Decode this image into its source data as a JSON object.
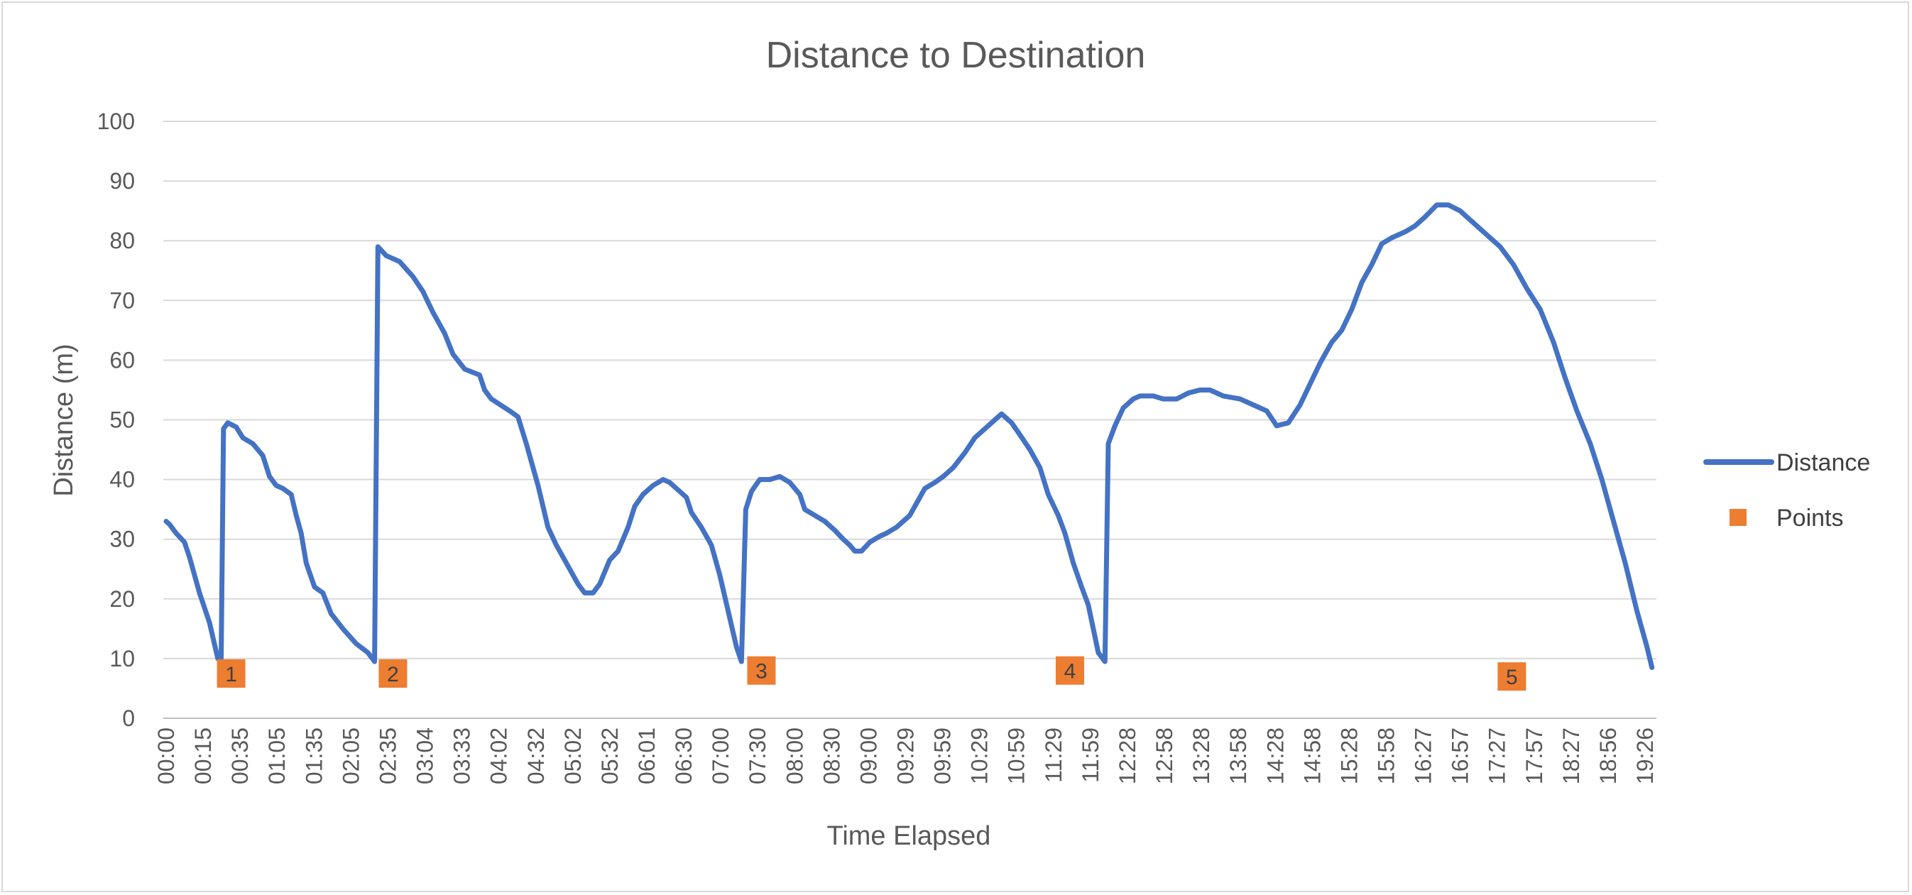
{
  "chart_data": {
    "type": "line",
    "title": "Distance to Destination",
    "xlabel": "Time Elapsed",
    "ylabel": "Distance (m)",
    "ylim": [
      0,
      100
    ],
    "yticks": [
      0,
      10,
      20,
      30,
      40,
      50,
      60,
      70,
      80,
      90,
      100
    ],
    "grid": true,
    "legend_position": "right",
    "x_tick_labels": [
      "00:00",
      "00:15",
      "00:35",
      "01:05",
      "01:35",
      "02:05",
      "02:35",
      "03:04",
      "03:33",
      "04:02",
      "04:32",
      "05:02",
      "05:32",
      "06:01",
      "06:30",
      "07:00",
      "07:30",
      "08:00",
      "08:30",
      "09:00",
      "09:29",
      "09:59",
      "10:29",
      "10:59",
      "11:29",
      "11:59",
      "12:28",
      "12:58",
      "13:28",
      "13:58",
      "14:28",
      "14:58",
      "15:28",
      "15:58",
      "16:27",
      "16:57",
      "17:27",
      "17:57",
      "18:27",
      "18:56",
      "19:26"
    ],
    "series": [
      {
        "name": "Distance",
        "kind": "line",
        "color": "#4472C4",
        "points": [
          [
            0,
            33
          ],
          [
            0.1,
            32.5
          ],
          [
            0.3,
            31
          ],
          [
            0.55,
            29.5
          ],
          [
            0.7,
            27
          ],
          [
            1.0,
            21
          ],
          [
            1.3,
            16
          ],
          [
            1.55,
            10
          ],
          [
            1.65,
            10
          ],
          [
            1.72,
            48.5
          ],
          [
            1.85,
            49.5
          ],
          [
            2.1,
            48.8
          ],
          [
            2.3,
            47
          ],
          [
            2.6,
            46
          ],
          [
            2.9,
            44
          ],
          [
            3.1,
            40.5
          ],
          [
            3.3,
            39
          ],
          [
            3.5,
            38.5
          ],
          [
            3.75,
            37.5
          ],
          [
            3.9,
            34
          ],
          [
            4.05,
            31
          ],
          [
            4.2,
            26
          ],
          [
            4.45,
            22
          ],
          [
            4.7,
            21
          ],
          [
            4.95,
            17.5
          ],
          [
            5.3,
            15
          ],
          [
            5.7,
            12.5
          ],
          [
            6.05,
            11
          ],
          [
            6.25,
            9.5
          ],
          [
            6.35,
            79
          ],
          [
            6.6,
            77.5
          ],
          [
            7.0,
            76.5
          ],
          [
            7.4,
            74
          ],
          [
            7.7,
            71.5
          ],
          [
            8.0,
            68
          ],
          [
            8.35,
            64.5
          ],
          [
            8.6,
            61
          ],
          [
            8.95,
            58.5
          ],
          [
            9.4,
            57.5
          ],
          [
            9.55,
            55
          ],
          [
            9.75,
            53.5
          ],
          [
            10.3,
            51.5
          ],
          [
            10.55,
            50.5
          ],
          [
            10.8,
            46
          ],
          [
            11.15,
            39
          ],
          [
            11.45,
            32
          ],
          [
            11.7,
            29
          ],
          [
            12.0,
            26
          ],
          [
            12.35,
            22.5
          ],
          [
            12.55,
            21
          ],
          [
            12.8,
            21
          ],
          [
            13.0,
            22.5
          ],
          [
            13.3,
            26.5
          ],
          [
            13.55,
            28
          ],
          [
            13.85,
            32
          ],
          [
            14.05,
            35.5
          ],
          [
            14.3,
            37.5
          ],
          [
            14.6,
            39
          ],
          [
            14.9,
            40
          ],
          [
            15.1,
            39.5
          ],
          [
            15.3,
            38.5
          ],
          [
            15.6,
            37
          ],
          [
            15.75,
            34.5
          ],
          [
            16.05,
            32
          ],
          [
            16.35,
            29
          ],
          [
            16.6,
            24
          ],
          [
            16.85,
            18
          ],
          [
            17.1,
            12
          ],
          [
            17.25,
            9.5
          ],
          [
            17.38,
            35
          ],
          [
            17.55,
            38
          ],
          [
            17.8,
            40
          ],
          [
            18.1,
            40
          ],
          [
            18.4,
            40.5
          ],
          [
            18.7,
            39.5
          ],
          [
            19.0,
            37.5
          ],
          [
            19.15,
            35
          ],
          [
            19.45,
            34
          ],
          [
            19.75,
            33
          ],
          [
            20.05,
            31.5
          ],
          [
            20.3,
            30
          ],
          [
            20.5,
            29
          ],
          [
            20.65,
            28
          ],
          [
            20.85,
            28
          ],
          [
            21.1,
            29.5
          ],
          [
            21.4,
            30.5
          ],
          [
            21.6,
            31
          ],
          [
            21.9,
            32
          ],
          [
            22.3,
            34
          ],
          [
            22.55,
            36.5
          ],
          [
            22.75,
            38.5
          ],
          [
            23.05,
            39.5
          ],
          [
            23.3,
            40.5
          ],
          [
            23.6,
            42
          ],
          [
            23.95,
            44.5
          ],
          [
            24.25,
            47
          ],
          [
            24.55,
            48.5
          ],
          [
            24.85,
            50
          ],
          [
            25.05,
            51
          ],
          [
            25.35,
            49.5
          ],
          [
            25.6,
            47.5
          ],
          [
            25.9,
            45
          ],
          [
            26.2,
            42
          ],
          [
            26.45,
            37.5
          ],
          [
            26.75,
            34
          ],
          [
            26.95,
            31
          ],
          [
            27.2,
            26
          ],
          [
            27.45,
            22
          ],
          [
            27.65,
            19
          ],
          [
            27.95,
            11
          ],
          [
            28.15,
            9.5
          ],
          [
            28.25,
            46
          ],
          [
            28.45,
            49
          ],
          [
            28.7,
            52
          ],
          [
            29.0,
            53.5
          ],
          [
            29.2,
            54
          ],
          [
            29.6,
            54
          ],
          [
            29.9,
            53.5
          ],
          [
            30.3,
            53.5
          ],
          [
            30.65,
            54.5
          ],
          [
            31.0,
            55
          ],
          [
            31.3,
            55
          ],
          [
            31.7,
            54
          ],
          [
            32.2,
            53.5
          ],
          [
            32.6,
            52.5
          ],
          [
            33.0,
            51.5
          ],
          [
            33.3,
            49
          ],
          [
            33.65,
            49.5
          ],
          [
            34.0,
            52.5
          ],
          [
            34.3,
            56
          ],
          [
            34.6,
            59.5
          ],
          [
            34.95,
            63
          ],
          [
            35.25,
            65
          ],
          [
            35.55,
            68.5
          ],
          [
            35.85,
            73
          ],
          [
            36.15,
            76
          ],
          [
            36.45,
            79.5
          ],
          [
            36.75,
            80.5
          ],
          [
            37.15,
            81.5
          ],
          [
            37.45,
            82.5
          ],
          [
            37.75,
            84
          ],
          [
            38.1,
            86
          ],
          [
            38.45,
            86
          ],
          [
            38.8,
            85
          ],
          [
            39.2,
            83
          ],
          [
            39.6,
            81
          ],
          [
            40.0,
            79
          ],
          [
            40.4,
            76
          ],
          [
            40.8,
            72
          ],
          [
            41.2,
            68.5
          ],
          [
            41.6,
            63
          ],
          [
            41.95,
            57
          ],
          [
            42.3,
            51.5
          ],
          [
            42.7,
            46
          ],
          [
            43.05,
            40
          ],
          [
            43.4,
            33
          ],
          [
            43.75,
            26
          ],
          [
            44.1,
            18
          ],
          [
            44.4,
            12
          ],
          [
            44.55,
            8.5
          ]
        ]
      },
      {
        "name": "Points",
        "kind": "markers",
        "color": "#ED7D31",
        "points": [
          {
            "x": 1.95,
            "y": 7.5,
            "label": "1"
          },
          {
            "x": 6.8,
            "y": 7.5,
            "label": "2"
          },
          {
            "x": 17.85,
            "y": 8,
            "label": "3"
          },
          {
            "x": 27.1,
            "y": 8,
            "label": "4"
          },
          {
            "x": 40.35,
            "y": 7,
            "label": "5"
          }
        ]
      }
    ]
  }
}
